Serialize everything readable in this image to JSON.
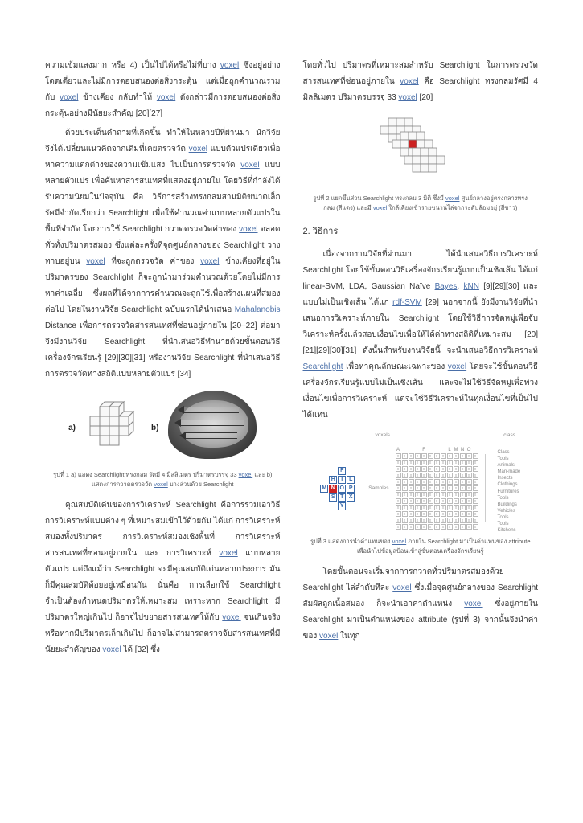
{
  "left": {
    "p1": "ความเข้มแสงมาก หรือ 4) เป็นไปได้หรือไม่ที่บาง ",
    "p1_link1": "voxel",
    "p1_cont": " ซึ่งอยู่อย่างโดดเดี่ยวและไม่มีการตอบสนองต่อสิ่งกระตุ้น แต่เมื่อถูกคำนวณรวมกับ ",
    "p1_link2": "voxel",
    "p1_cont2": " ข้างเคียง กลับทำให้ ",
    "p1_link3": "voxel",
    "p1_cont3": " ดังกล่าวมีการตอบสนองต่อสิ่งกระตุ้นอย่างมีนัยยะสำคัญ [20][27]",
    "p2a": "ด้วยประเด็นคำถามที่เกิดขึ้น ทำให้ในหลายปีที่ผ่านมา นักวิจัยจึงได้เปลี่ยนแนวคิดจากเดิมที่เคยตรวจวัด ",
    "p2_link1": "voxel",
    "p2b": " แบบตัวแปรเดียวเพื่อหาความแตกต่างของความเข้มแสง ไปเป็นการตรวจวัด ",
    "p2_link2": "voxel",
    "p2c": " แบบหลายตัวแปร เพื่อค้นหาสารสนเทศที่แสดงอยู่ภายใน โดยวิธีที่กำลังได้รับความนิยมในปัจจุบัน คือ วิธีการสร้างทรงกลมสามมิติขนาดเล็กรัศมีจำกัดเรียกว่า Searchlight เพื่อใช้คำนวณค่าแบบหลายตัวแปรในพื้นที่จำกัด โดยการใช้ Searchlight กวาดตรวจวัดค่าของ ",
    "p2_link3": "voxel",
    "p2d": " ตลอดทั่วทั้งปริมาตรสมอง ซึ่งแต่ละครั้งที่จุดศูนย์กลางของ Searchlight วางทาบอยู่บน ",
    "p2_link4": "voxel",
    "p2e": " ที่จะถูกตรวจวัด ค่าของ ",
    "p2_link5": "voxel",
    "p2f": " ข้างเคียงที่อยู่ในปริมาตรของ Searchlight ก็จะถูกนำมาร่วมคำนวณด้วยโดยไม่มีการหาค่าเฉลี่ย ซึ่งผลที่ได้จากการคำนวณจะถูกใช้เพื่อสร้างแผนที่สมองต่อไป โดยในงานวิจัย Searchlight ฉบับแรกได้นำเสนอ ",
    "p2_link6": "Mahalanobis",
    "p2g": " Distance เพื่อการตรวจวัดสารสนเทศที่ซ่อนอยู่ภายใน [20–22] ต่อมาจึงมีงานวิจัย Searchlight ที่นำเสนอวิธีทำนายด้วยขั้นตอนวิธีเครื่องจักรเรียนรู้ [29][30][31] หรืองานวิจัย Searchlight ที่นำเสนอวิธีการตรวจวัดทางสถิติแบบหลายตัวแปร [34]",
    "fig1_a": "a)",
    "fig1_b": "b)",
    "caption1a": "รูปที่ 1 a) แสดง Searchlight ทรงกลม รัศมี 4 มิลลิเมตร ปริมาตรบรรจุ 33 ",
    "caption1_link": "voxel",
    "caption1b": " และ b) แสดงการกวาดตรวจวัด ",
    "caption1_link2": "voxel",
    "caption1c": " บางส่วนด้วย Searchlight",
    "p3a": "คุณสมบัติเด่นของการวิเคราะห์ Searchlight คือการรวมเอาวิธีการวิเคราะห์แบบต่าง ๆ ที่เหมาะสมเข้าไว้ด้วยกัน ได้แก่ การวิเคราะห์สมองทั้งปริมาตร การวิเคราะห์สมองเชิงพื้นที่ การวิเคราะห์สารสนเทศที่ซ่อนอยู่ภายใน และ การวิเคราะห์ ",
    "p3_link1": "voxel",
    "p3b": " แบบหลายตัวแปร แต่ถึงแม้ว่า Searchlight จะมีคุณสมบัติเด่นหลายประการ มันก็มีคุณสมบัติด้อยอยู่เหมือนกัน นั่นคือ การเลือกใช้ Searchlight จำเป็นต้องกำหนดปริมาตรให้เหมาะสม เพราะหาก Searchlight มีปริมาตรใหญ่เกินไป ก็อาจไปขยายสารสนเทศให้กับ ",
    "p3_link2": "voxel",
    "p3c": " จนเกินจริง หรือหากมีปริมาตรเล็กเกินไป ก็อาจไม่สามารถตรวจจับสารสนเทศที่มีนัยยะสำคัญของ ",
    "p3_link3": "voxel",
    "p3d": " ได้ [32] ซึ่ง"
  },
  "right": {
    "p1a": "โดยทั่วไป ปริมาตรที่เหมาะสมสำหรับ Searchlight ในการตรวจวัดสารสนเทศที่ซ่อนอยู่ภายใน ",
    "p1_link1": "voxel",
    "p1b": " คือ Searchlight ทรงกลมรัศมี 4 มิลลิเมตร ปริมาตรบรรจุ 33 ",
    "p1_link2": "voxel",
    "p1c": " [20]",
    "caption2a": "รูปที่ 2 แยกขึ้นส่วน Searchlight ทรงกลม 3 มิติ ซึ่งมี ",
    "caption2_link1": "voxel",
    "caption2b": " ศูนย์กลางอยู่ตรงกลางทรงกลม (สีแดง) และมี ",
    "caption2_link2": "voxel",
    "caption2c": " ใกล้เคียงเข้ารายขนานไล่จากระดับล้อมอยู่ (สีขาว)",
    "section": "2. วิธีการ",
    "p2a": "เนื่องจากงานวิจัยที่ผ่านมา ได้นำเสนอวิธีการวิเคราะห์ Searchlight โดยใช้ขั้นตอนวิธีเครื่องจักรเรียนรู้แบบเป็นเชิงเส้น ได้แก่ linear-SVM, LDA, Gaussian Naïve ",
    "p2_link1": "Bayes",
    "p2b": ", ",
    "p2_link2": "kNN",
    "p2c": " [9][29][30] และแบบไม่เป็นเชิงเส้น ได้แก่ ",
    "p2_link3": "rdf-SVM",
    "p2d": " [29] นอกจากนี้ ยังมีงานวิจัยที่นำเสนอการวิเคราะห์ภายใน Searchlight โดยใช้วิธีการจัดหมู่เพื่อจับวิเคราะห์ครั้งแล้วสอบเงื่อนไขเพื่อให้ได้ค่าทางสถิติที่เหมาะสม [20][21][29][30][31] ดังนั้นสำหรับงานวิจัยนี้ จะนำเสนอวิธีการวิเคราะห์ ",
    "p2_link4": "Searchlight",
    "p2e": " เพื่อหาคุณลักษณะเฉพาะของ ",
    "p2_link5": "voxel",
    "p2f": " โดยจะใช้ขั้นตอนวิธีเครื่องจักรเรียนรู้แบบไม่เป็นเชิงเส้น และจะไม่ใช้วิธีจัดหมู่เพื่อพ่วงเงื่อนไขเพื่อการวิเคราะห์ แต่จะใช้วิธีวิเคราะห์ในทุกเงื่อนไขที่เป็นไปได้แทน",
    "matrix_labels": {
      "voxels": "voxels",
      "class": "class",
      "samples": "Samples"
    },
    "cross_letters": [
      "F",
      "H",
      "I",
      "L",
      "M",
      "N",
      "O",
      "P",
      "S",
      "T",
      "X",
      "Y"
    ],
    "classes": [
      "Class",
      "Tools",
      "Animals",
      "Man-made",
      "Insects",
      "Clothings",
      "Furnitures",
      "Tools",
      "Buildings",
      "Vehicles",
      "Tools",
      "Tools",
      "Kitchens"
    ],
    "headers1": [
      "A",
      "",
      "",
      "",
      "F",
      "",
      "",
      "",
      "L",
      "M",
      "N",
      "O",
      ""
    ],
    "headers2": [
      "",
      "",
      "",
      "",
      "",
      "",
      "",
      "",
      "",
      "",
      "",
      "T",
      ""
    ],
    "caption3a": "รูปที่ 3 แสดงการนำค่าแทนของ ",
    "caption3_link1": "voxel",
    "caption3b": " ภายใน Searchlight มาเป็นค่าแทนของ attribute เพื่อนำไปข้อมูลป้อนเข้าสู่ขั้นตอนเครื่องจักรเรียนรู้",
    "p3a": "โดยขั้นตอนจะเริ่มจากการกวาดทั่วปริมาตรสมองด้วย Searchlight ไล่ลำดับทีละ ",
    "p3_link1": "voxel",
    "p3b": " ซึ่งเมื่อจุดศูนย์กลางของ Searchlight สัมผัสถูกเนื้อสมอง ก็จะนำเอาค่าตำแหน่ง ",
    "p3_link2": "voxel",
    "p3c": " ซึ่งอยู่ภายใน Searchlight มาเป็นตำแหน่งของ attribute (รูปที่ 3) จากนั้นจึงนำค่าของ ",
    "p3_link3": "voxel",
    "p3d": " ในทุก"
  },
  "colors": {
    "link": "#4a6fa8",
    "text": "#333333",
    "caption": "#555555",
    "cube_border": "#888888",
    "cube_fill": "#f8f8f8",
    "red": "#cc2222",
    "grid_border": "#3a6aaa"
  }
}
